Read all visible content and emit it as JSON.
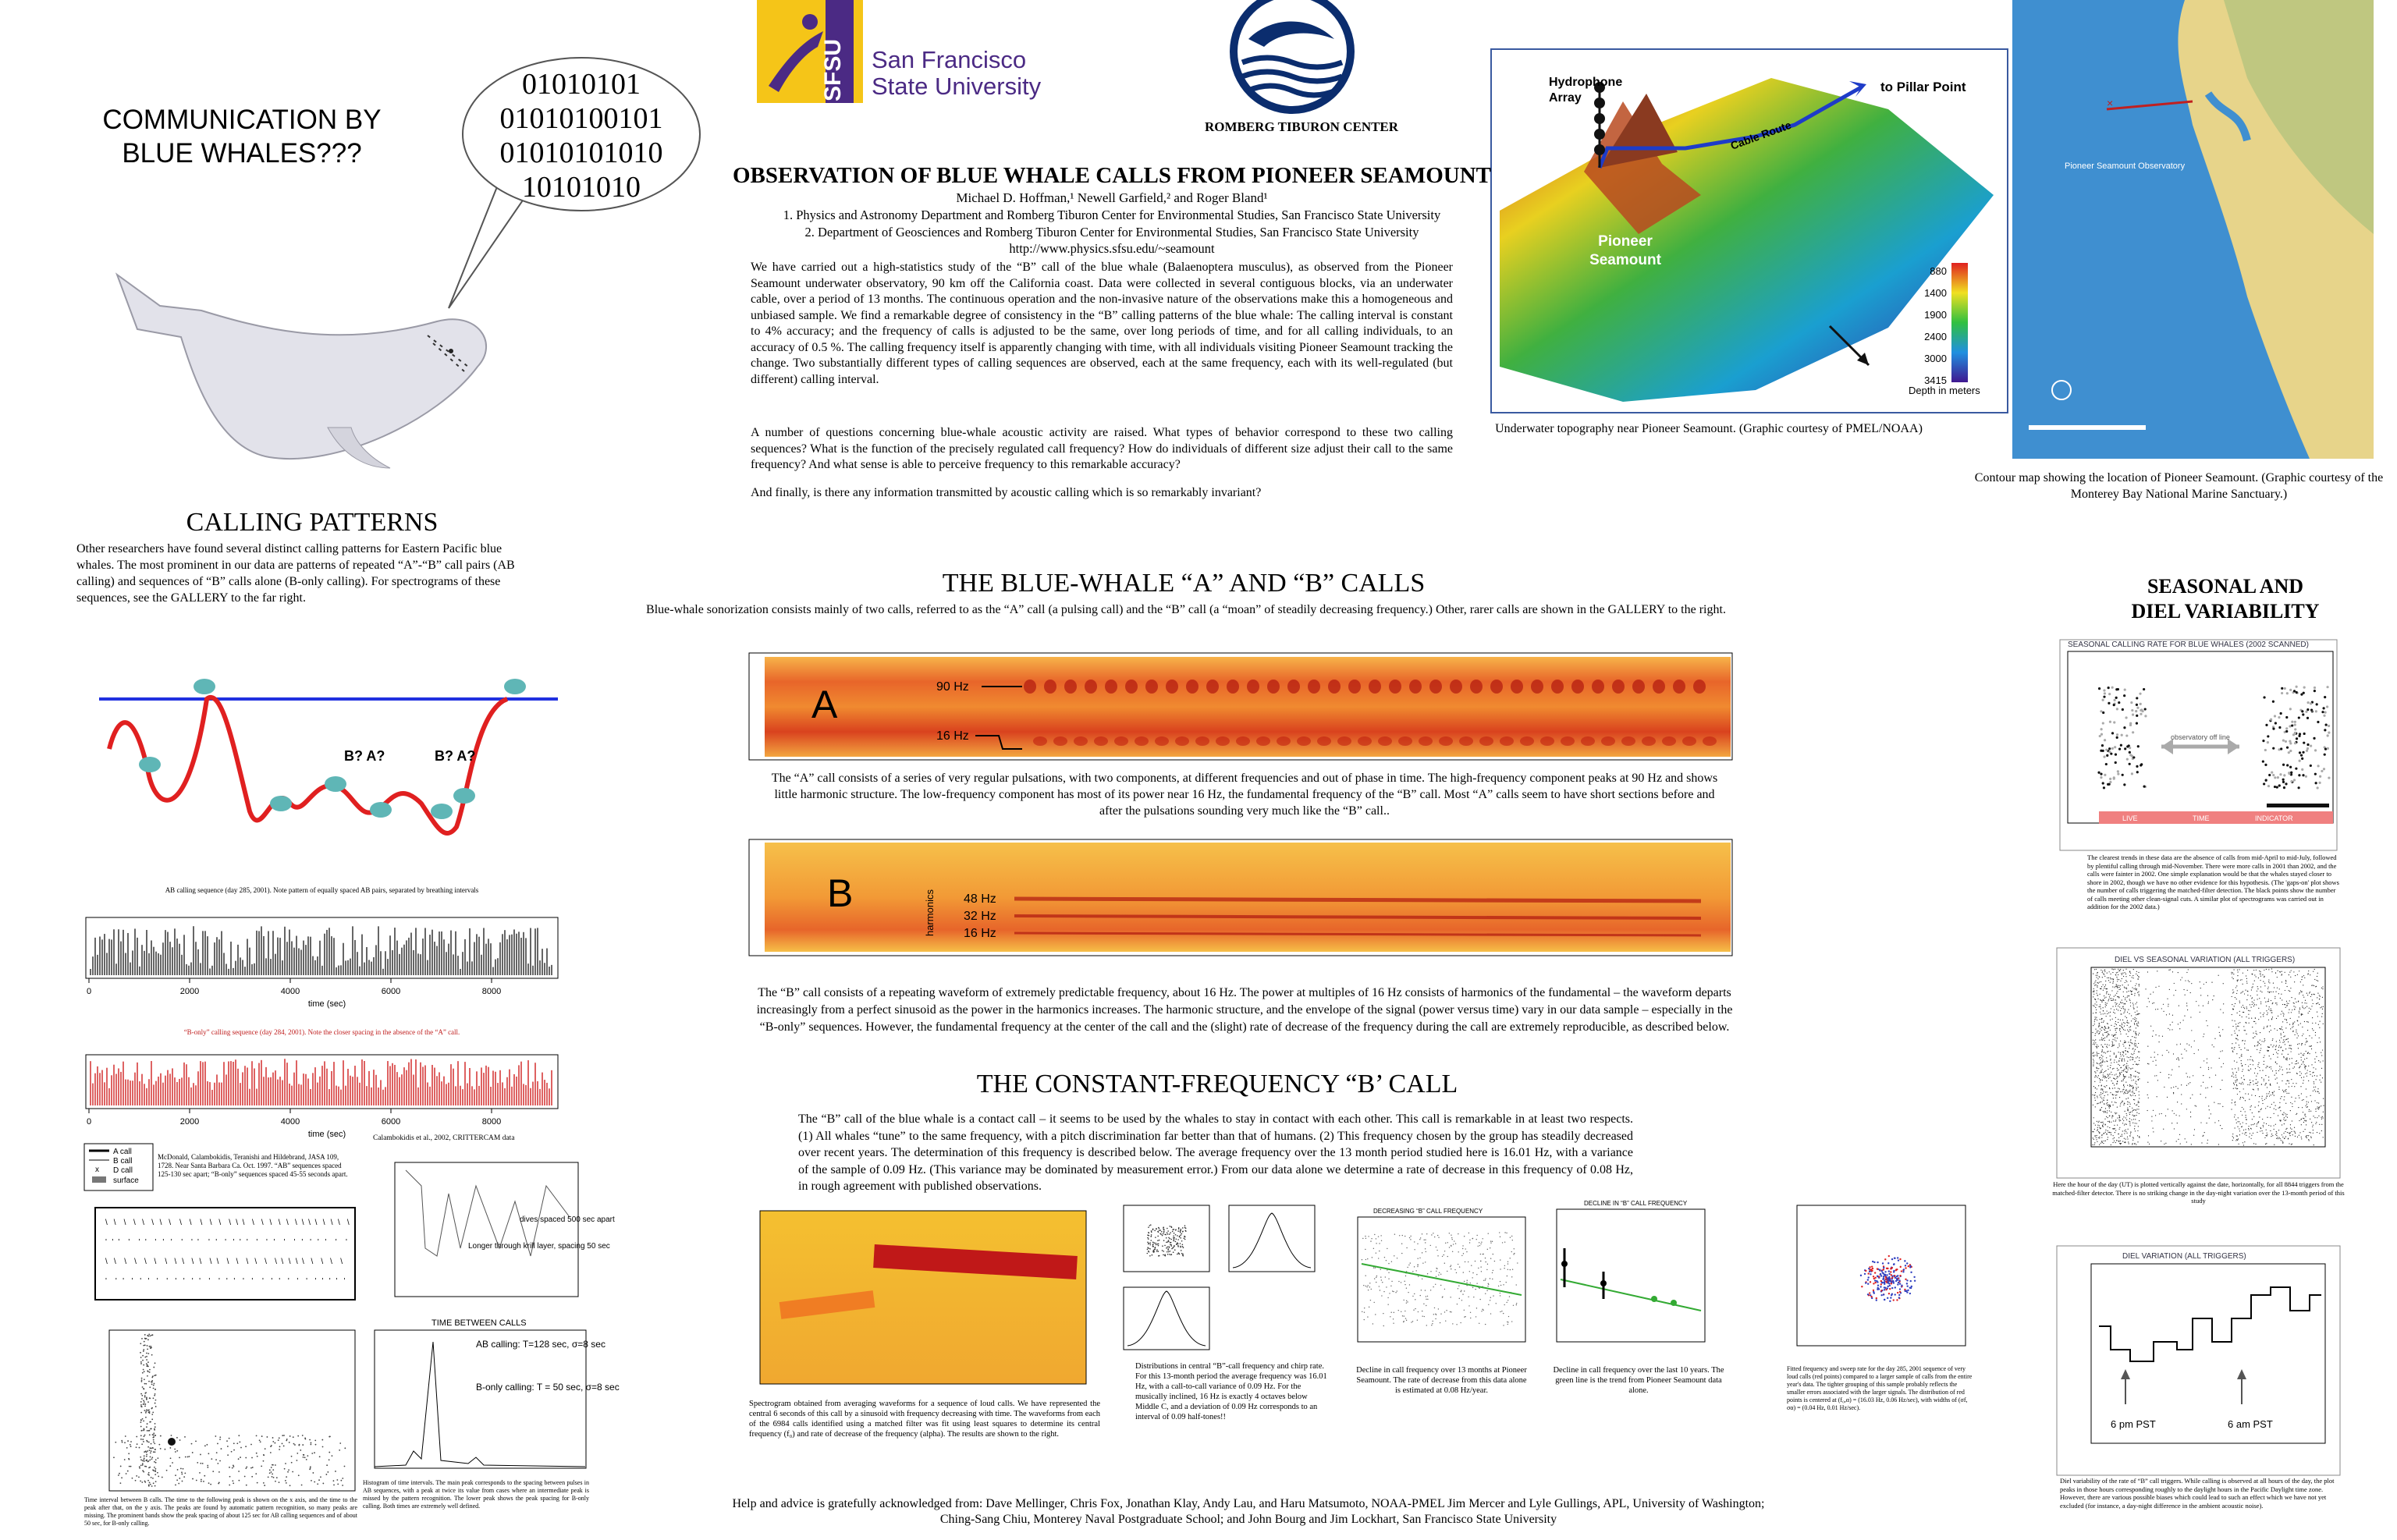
{
  "header": {
    "communication": [
      "COMMUNICATION BY",
      "BLUE WHALES???"
    ],
    "binary": [
      "01010101",
      "01010100101",
      "01010101010",
      "10101010"
    ],
    "sfsu_mark": "SFSU",
    "university": [
      "San Francisco",
      "State University"
    ],
    "romberg": "ROMBERG TIBURON CENTER",
    "title": "OBSERVATION OF BLUE WHALE CALLS FROM PIONEER SEAMOUNT",
    "authors": "Michael D. Hoffman,¹ Newell Garfield,² and Roger Bland¹",
    "affiliations": [
      "1.   Physics and Astronomy Department and Romberg Tiburon Center for Environmental Studies, San Francisco State University",
      "2.  Department of Geosciences and Romberg Tiburon Center for Environmental Studies, San Francisco State University"
    ],
    "url": "http://www.physics.sfsu.edu/~seamount"
  },
  "abstract": [
    "We have carried out a high-statistics study of the “B” call of the blue whale (Balaenoptera musculus), as observed from the Pioneer Seamount underwater observatory, 90 km off the California coast.  Data were collected in several contiguous blocks, via an underwater cable, over a period of 13 months.  The continuous operation and the non-invasive nature of the observations make this a homogeneous and unbiased sample.  We find a remarkable degree of consistency in the “B” calling patterns of the blue whale:  The calling interval is constant to 4% accuracy; and the frequency of calls is adjusted to be the same, over long periods of time, and for all calling individuals, to an accuracy of 0.5 %.  The calling frequency itself is apparently changing with time, with all individuals visiting Pioneer Seamount tracking the change.  Two substantially different types of calling sequences are observed, each at the same frequency, each with its well-regulated (but different) calling interval.",
    "A number of questions concerning blue-whale acoustic activity are raised.  What types of behavior correspond to these two calling sequences?  What is the function of the precisely regulated call frequency?  How do individuals of different size adjust their call to the same frequency?  And what sense is able to perceive frequency to this remarkable accuracy?",
    "And finally, is there any information transmitted by acoustic calling which is so remarkably invariant?"
  ],
  "topography": {
    "hydrophone": [
      "Hydrophone",
      "Array"
    ],
    "pillar": "to Pillar Point",
    "cable": "Cable Route",
    "seamount": [
      "Pioneer",
      "Seamount"
    ],
    "depth_ticks": [
      "880",
      "1400",
      "1900",
      "2400",
      "3000",
      "3415"
    ],
    "depth_label": "Depth in meters",
    "caption": "Underwater topography near Pioneer Seamount. (Graphic courtesy of PMEL/NOAA)"
  },
  "map": {
    "label": "Pioneer Seamount Observatory",
    "caption": "Contour map showing the location of Pioneer Seamount.  (Graphic courtesy of the Monterey Bay National Marine Sanctuary.)"
  },
  "calling_patterns": {
    "heading": "CALLING PATTERNS",
    "text": "Other researchers have found several distinct calling patterns for Eastern Pacific blue whales.  The most prominent in our data are patterns of repeated “A”-“B” call pairs (AB calling) and  sequences of “B” calls alone (B-only calling).  For spectrograms of these sequences, see the GALLERY to the far right.",
    "dive_labels": [
      "B?  A?",
      "B?  A?"
    ],
    "ab_caption": "AB calling sequence (day 285, 2001).  Note pattern of equally spaced AB pairs, separated by breathing intervals",
    "bonly_caption": "“B-only” calling sequence (day 284, 2001).  Note the closer spacing in the absence of the “A” call.",
    "x_ticks": [
      "0",
      "2000",
      "4000",
      "6000",
      "8000"
    ],
    "x_label": "time (sec)",
    "crittercam": "Calambokidis et al., 2002, CRITTERCAM data",
    "legend": [
      "A call",
      "B call",
      "D call",
      "surface"
    ],
    "mcdonald": "McDonald, Calambokidis, Teranishi and Hildebrand, JASA 109, 1728.  Near Santa Barbara Ca. Oct. 1997.  “AB” sequences spaced 125-130 sec apart; “B-only” sequences spaced 45-55 seconds apart.",
    "dives_note": "dives spaced 500 sec apart",
    "krill_note": "Longer through krill layer, spacing 50 sec",
    "hist_title": "TIME BETWEEN CALLS",
    "ab_note": "AB calling: T=128 sec, σ=8 sec",
    "bonly_note": "B-only calling: T = 50 sec, σ=8 sec",
    "scatter_caption": "Time interval between B calls.  The time to the following peak is shown on the x axis, and the time to the peak after that, on the y axis.  The peaks are found by automatic pattern recognition, so many peaks are missing.  The prominent bands show the peak spacing of about 125 sec for AB calling sequences and of about 50 sec, for B-only calling.",
    "hist_caption": "Histogram of time intervals.  The main peak corresponds to the spacing between pulses in AB sequences, with a peak at twice its value from cases where an intermediate peak is missed by the pattern recognition.  The lower peak shows the peak spacing for B-only calling.  Both times are extremely well defined."
  },
  "calls": {
    "heading": "THE BLUE-WHALE “A” AND “B” CALLS",
    "intro": "Blue-whale sonorization consists mainly of two calls, referred to as the “A” call (a pulsing call) and the “B” call (a “moan” of steadily decreasing frequency.)  Other, rarer calls are shown in the GALLERY to the right.",
    "a_letter": "A",
    "a_labels": [
      "90 Hz",
      "16 Hz"
    ],
    "a_caption": "The “A” call consists of a series of very regular pulsations, with two components, at different frequencies and out of phase in time.  The high-frequency component peaks at 90 Hz and shows little harmonic structure.  The low-frequency component has most of its power near 16 Hz, the fundamental frequency of the “B” call.  Most “A” calls seem to have short sections before and after the pulsations sounding very much like the “B” call..",
    "b_letter": "B",
    "harmonics": "harmonics",
    "b_labels": [
      "48 Hz",
      "32 Hz",
      "16 Hz"
    ],
    "b_caption": "The “B” call consists of a repeating waveform of extremely predictable frequency, about 16 Hz.  The power at multiples of 16 Hz consists of harmonics of the fundamental – the waveform departs increasingly from a perfect sinusoid as the power in the harmonics increases.  The harmonic structure, and the envelope of the signal (power versus time) vary in our data sample – especially in the “B-only” sequences.  However, the fundamental frequency at the center of the call and the (slight) rate of decrease of the frequency during the call are extremely reproducible, as described below."
  },
  "constant": {
    "heading": "THE CONSTANT-FREQUENCY “B’ CALL",
    "text": "The “B” call of the blue whale is a contact call – it seems to be used by the whales to stay in contact with each other.  This call is remarkable in at least two respects.  (1)  All whales “tune” to the same frequency, with a pitch discrimination far better than that of humans.  (2)  This frequency chosen by the group has steadily decreased over recent years.  The determination of this frequency is described below.  The average frequency over the 13 month period studied here is 16.01 Hz, with a variance of the sample of 0.09 Hz.  (This variance may be dominated by measurement error.)  From our data alone we determine a rate of decrease in this frequency of 0.08 Hz, in rough agreement with published observations.",
    "spectrogram_caption": "Spectrogram obtained from averaging waveforms for a sequence of loud calls.  We have represented the central 6 seconds of this call by a sinusoid with frequency decreasing with time.  The waveforms from each of the 6984 calls identified using a matched filter was fit using least squares to determine its central frequency (f₀) and rate of decrease of the frequency (alpha).  The results are shown to the right.",
    "distributions_caption": "Distributions in central “B”-call frequency and chirp rate.  For this 13-month period the average frequency was 16.01 Hz, with a call-to-call variance of 0.09 Hz.  For the musically inclined, 16 Hz is exactly 4 octaves below Middle C, and a deviation of 0.09 Hz corresponds to an interval of 0.09 half-tones!!",
    "decline13_title": "DECREASING “B” CALL FREQUENCY",
    "decline13_caption": "Decline in call frequency over 13 months at Pioneer Seamount.  The rate of decrease from this data alone is estimated at 0.08 Hz/year.",
    "decline10_title": "DECLINE IN “B” CALL FREQUENCY",
    "decline10_caption": "Decline in call frequency over the last 10 years.  The green line is the trend from Pioneer Seamount data alone.",
    "scatter_caption": "Fitted frequency and sweep rate for the day 285, 2001 sequence of very loud calls (red points) compared to a larger sample of calls from the entire year's data. The tighter grouping of this sample probably reflects the smaller errors associated with the larger signals. The distribution of red points is centered at (f₀,α) = (16.03 Hz, 0.06 Hz/sec), with widths of (σf, σα) = (0.04 Hz, 0.01 Hz/sec)."
  },
  "seasonal": {
    "heading": [
      "SEASONAL AND",
      "DIEL VARIABILITY"
    ],
    "rate_title": "SEASONAL CALLING RATE FOR BLUE WHALES (2002 SCANNED)",
    "offline": "observatory off line",
    "bar_labels": [
      "LIVE",
      "TIME",
      "INDICATOR"
    ],
    "rate_caption": "The clearest trends in these data are the absence of calls from mid-April to mid-July, followed by plentiful calling through mid-November.  There were more calls in 2001 than 2002, and the calls were fainter in 2002.  One simple explanation would be that the whales stayed closer to shore in 2002, though we have no other evidence for this hypothesis.  (The 'gaps-on' plot shows the number of calls triggering the matched-filter detection. The black points show the number of calls meeting other clean-signal cuts. A similar plot of spectrograms was carried out in addition for the 2002 data.)",
    "diel_seasonal_title": "DIEL VS SEASONAL VARIATION (ALL TRIGGERS)",
    "diel_seasonal_caption": "Here the hour of the day (UT) is plotted vertically against the date, horizontally, for all 8844 triggers from the matched-filter detector.  There is no striking change in the day-night variation over the 13-month period of this study",
    "diel_title": "DIEL VARIATION (ALL TRIGGERS)",
    "pm": "6 pm PST",
    "am": "6 am PST",
    "diel_caption": "Diel variability of the rate of “B” call triggers.  While calling is observed at all hours of the day, the plot peaks in those hours corresponding roughly to the daylight hours in the Pacific Daylight time zone.  However, there are various possible biases which could lead to such an effect which we have not yet excluded (for instance, a day-night difference in the ambient acoustic noise)."
  },
  "acknowledgement": "Help and advice is gratefully acknowledged from: Dave Mellinger, Chris Fox, Jonathan Klay, Andy Lau, and Haru Matsumoto, NOAA-PMEL Jim Mercer and Lyle Gullings, APL, University of Washington; Ching-Sang Chiu, Monterey Naval Postgraduate School; and John Bourg and Jim Lockhart, San Francisco State University"
}
